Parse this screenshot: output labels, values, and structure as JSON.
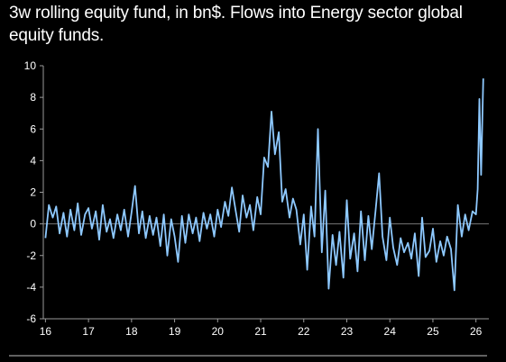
{
  "chart_data": {
    "type": "line",
    "title": "3w rolling equity fund, in bn$. Flows into Energy sector global equity funds.",
    "xlabel": "",
    "ylabel": "",
    "xlim": [
      2015.95,
      2026.3
    ],
    "ylim": [
      -6,
      10
    ],
    "x_ticks": [
      16,
      17,
      18,
      19,
      20,
      21,
      22,
      23,
      24,
      25,
      26
    ],
    "x_tick_labels": [
      "16",
      "17",
      "18",
      "19",
      "20",
      "21",
      "22",
      "23",
      "24",
      "25",
      "26"
    ],
    "y_ticks": [
      -6,
      -4,
      -2,
      0,
      2,
      4,
      6,
      8,
      10
    ],
    "y_tick_labels": [
      "-6",
      "-4",
      "-2",
      "0",
      "2",
      "4",
      "6",
      "8",
      "10"
    ],
    "grid": false,
    "zero_line": true,
    "legend": "none",
    "colors": {
      "line": "#8EC9FF",
      "axis": "#9a9a9a",
      "zero_line": "#777777",
      "background": "#000000",
      "text": "#ffffff"
    },
    "series": [
      {
        "x": [
          2016.0,
          2016.08,
          2016.17,
          2016.25,
          2016.33,
          2016.42,
          2016.5,
          2016.58,
          2016.67,
          2016.75,
          2016.83,
          2016.92,
          2017.0,
          2017.08,
          2017.17,
          2017.25,
          2017.33,
          2017.42,
          2017.5,
          2017.58,
          2017.67,
          2017.75,
          2017.83,
          2017.92,
          2018.0,
          2018.08,
          2018.17,
          2018.25,
          2018.33,
          2018.42,
          2018.5,
          2018.58,
          2018.67,
          2018.75,
          2018.83,
          2018.92,
          2019.0,
          2019.08,
          2019.17,
          2019.25,
          2019.33,
          2019.42,
          2019.5,
          2019.58,
          2019.67,
          2019.75,
          2019.83,
          2019.92,
          2020.0,
          2020.08,
          2020.17,
          2020.25,
          2020.33,
          2020.42,
          2020.5,
          2020.58,
          2020.67,
          2020.75,
          2020.83,
          2020.92,
          2021.0,
          2021.08,
          2021.17,
          2021.25,
          2021.33,
          2021.42,
          2021.5,
          2021.58,
          2021.67,
          2021.75,
          2021.83,
          2021.92,
          2022.0,
          2022.08,
          2022.17,
          2022.25,
          2022.33,
          2022.42,
          2022.5,
          2022.58,
          2022.67,
          2022.75,
          2022.83,
          2022.92,
          2023.0,
          2023.08,
          2023.17,
          2023.25,
          2023.33,
          2023.42,
          2023.5,
          2023.58,
          2023.67,
          2023.75,
          2023.83,
          2023.92,
          2024.0,
          2024.08,
          2024.17,
          2024.25,
          2024.33,
          2024.42,
          2024.5,
          2024.58,
          2024.67,
          2024.75,
          2024.83,
          2024.92,
          2025.0,
          2025.08,
          2025.17,
          2025.25,
          2025.33,
          2025.42,
          2025.5,
          2025.58,
          2025.67,
          2025.75,
          2025.83,
          2025.92,
          2026.0,
          2026.04,
          2026.08,
          2026.12,
          2026.17
        ],
        "y": [
          -0.9,
          1.2,
          0.4,
          1.1,
          -0.6,
          0.7,
          -0.8,
          0.9,
          -0.4,
          1.3,
          -0.7,
          0.6,
          1.0,
          -0.3,
          0.8,
          -1.0,
          1.2,
          -0.5,
          0.3,
          -0.9,
          0.6,
          -0.4,
          0.9,
          -0.8,
          0.7,
          2.4,
          -0.6,
          0.8,
          -0.9,
          0.5,
          -0.7,
          0.4,
          -1.4,
          0.6,
          -2.0,
          0.3,
          -0.8,
          -2.4,
          0.5,
          -1.2,
          0.6,
          -0.6,
          0.4,
          -1.1,
          0.7,
          -0.3,
          0.6,
          -0.8,
          0.9,
          -0.2,
          1.4,
          0.5,
          2.3,
          0.8,
          -0.5,
          1.8,
          0.4,
          1.2,
          -0.4,
          1.7,
          0.6,
          4.2,
          3.6,
          7.1,
          4.4,
          5.8,
          1.4,
          2.2,
          0.4,
          1.6,
          0.9,
          -1.3,
          0.6,
          -2.9,
          1.1,
          -0.8,
          6.0,
          -1.8,
          2.1,
          -4.1,
          -0.7,
          -2.6,
          -0.5,
          -3.4,
          1.5,
          -2.2,
          -0.6,
          -3.0,
          0.8,
          -2.3,
          0.5,
          -1.6,
          0.9,
          3.2,
          -0.8,
          -2.3,
          0.4,
          -1.5,
          -2.6,
          -0.9,
          -1.8,
          -1.2,
          -2.2,
          -0.6,
          -3.3,
          0.4,
          -2.1,
          -1.7,
          -0.3,
          -2.4,
          -1.1,
          -2.0,
          -0.8,
          -1.6,
          -4.2,
          1.2,
          -0.8,
          0.6,
          -0.4,
          0.8,
          0.6,
          2.2,
          7.9,
          3.1,
          9.2
        ]
      }
    ]
  }
}
